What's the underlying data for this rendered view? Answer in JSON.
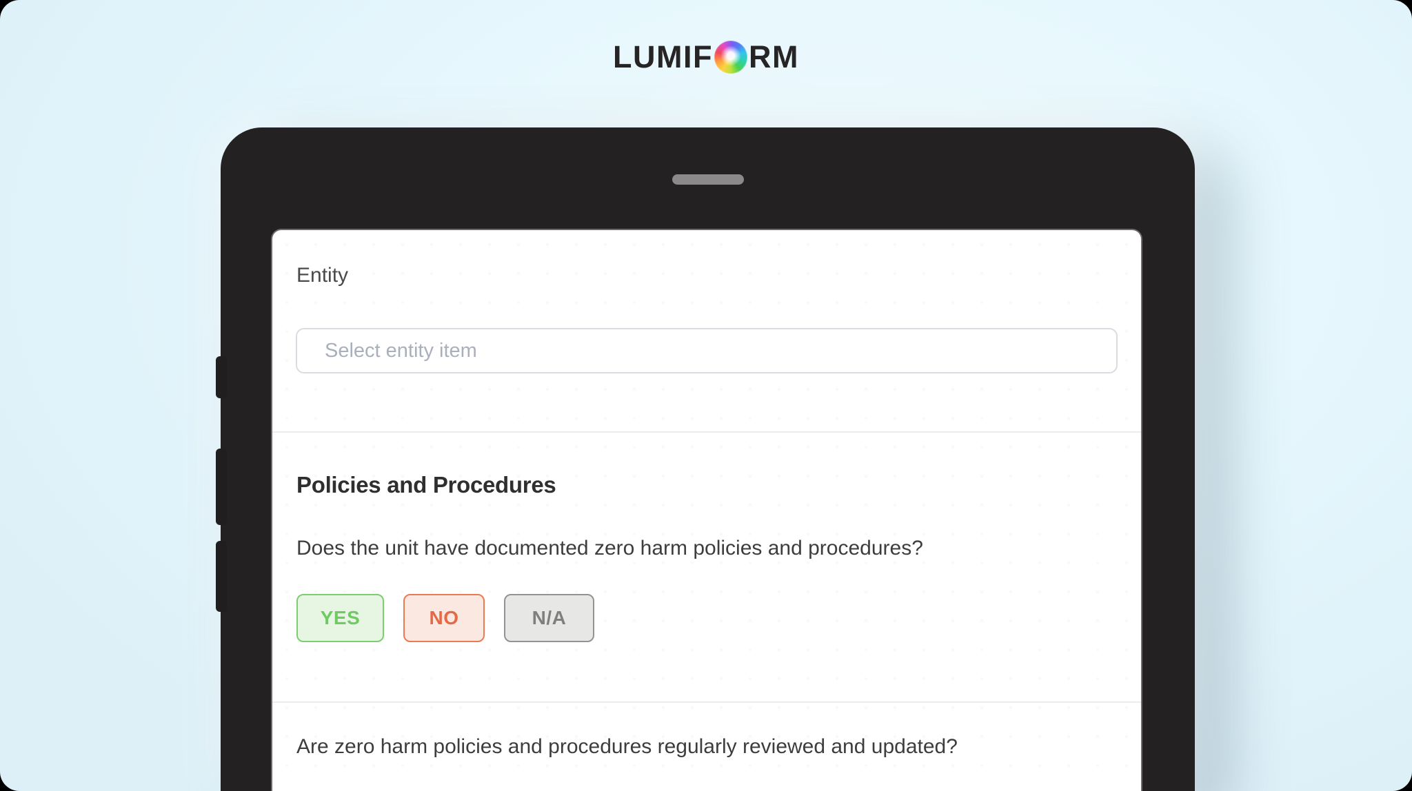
{
  "brand": {
    "name": "LUMIFORM",
    "wordmark_left": "LUMIF",
    "wordmark_right": "RM",
    "logo_icon": "rainbow-flower-o-icon"
  },
  "device": {
    "type": "tablet-mockup",
    "frame_color": "#242122",
    "speaker_bar_color": "#8b8989"
  },
  "form": {
    "entity_label": "Entity",
    "entity_value": "",
    "entity_placeholder": "Select entity item",
    "section_title": "Policies and Procedures",
    "questions": [
      {
        "text": "Does the unit have documented zero harm policies and procedures?",
        "options": [
          {
            "label": "YES",
            "text_color": "#6fca63",
            "border_color": "#7ccd70",
            "background": "#e7f5e3"
          },
          {
            "label": "NO",
            "text_color": "#e66946",
            "border_color": "#e97a52",
            "background": "#fbe8e1"
          },
          {
            "label": "N/A",
            "text_color": "#7f7f7f",
            "border_color": "#929292",
            "background": "#e7e8e6"
          }
        ]
      },
      {
        "text": "Are zero harm policies and procedures regularly reviewed and updated?"
      }
    ]
  },
  "colors": {
    "page_background": "#e4f6fc",
    "card_background": "#ffffff",
    "accent_green": "#6fca63",
    "accent_red": "#e66946",
    "neutral_gray": "#7f7f7f",
    "divider": "#ededed"
  }
}
